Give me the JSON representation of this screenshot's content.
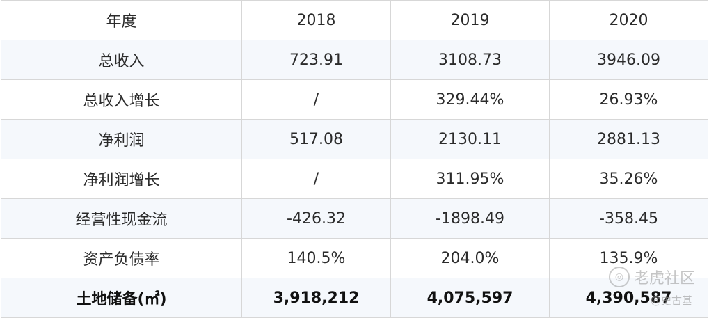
{
  "table": {
    "header": [
      "年度",
      "2018",
      "2019",
      "2020"
    ],
    "rows": [
      {
        "label": "总收入",
        "values": [
          "723.91",
          "3108.73",
          "3946.09"
        ]
      },
      {
        "label": "总收入增长",
        "values": [
          "/",
          "329.44%",
          "26.93%"
        ]
      },
      {
        "label": "净利润",
        "values": [
          "517.08",
          "2130.11",
          "2881.13"
        ]
      },
      {
        "label": "净利润增长",
        "values": [
          "/",
          "311.95%",
          "35.26%"
        ]
      },
      {
        "label": "经营性现金流",
        "values": [
          "-426.32",
          "-1898.49",
          "-358.45"
        ]
      },
      {
        "label": "资产负债率",
        "values": [
          "140.5%",
          "204.0%",
          "135.9%"
        ]
      },
      {
        "label": "土地储备(㎡)",
        "values": [
          "3,918,212",
          "4,075,597",
          "4,390,587"
        ]
      }
    ]
  },
  "watermark": {
    "brand": "老虎社区",
    "author": "@史古基"
  }
}
